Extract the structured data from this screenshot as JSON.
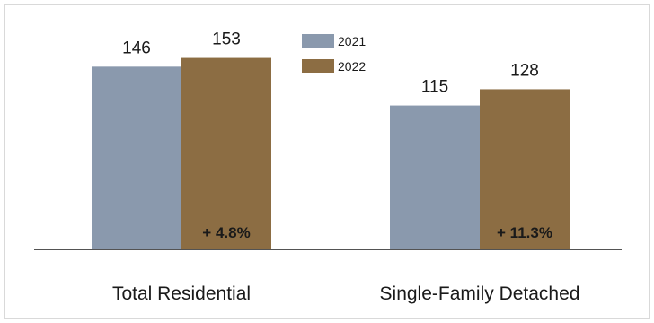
{
  "chart_data": {
    "type": "bar",
    "categories": [
      "Total Residential",
      "Single-Family Detached"
    ],
    "series": [
      {
        "name": "2021",
        "values": [
          146,
          115
        ],
        "color": "#8a99ad"
      },
      {
        "name": "2022",
        "values": [
          153,
          128
        ],
        "color": "#8c6d43"
      }
    ],
    "changes": [
      "+ 4.8%",
      "+ 11.3%"
    ],
    "ylim": [
      0,
      160
    ],
    "grid": false,
    "legend": "top-center",
    "title": "",
    "xlabel": "",
    "ylabel": ""
  }
}
